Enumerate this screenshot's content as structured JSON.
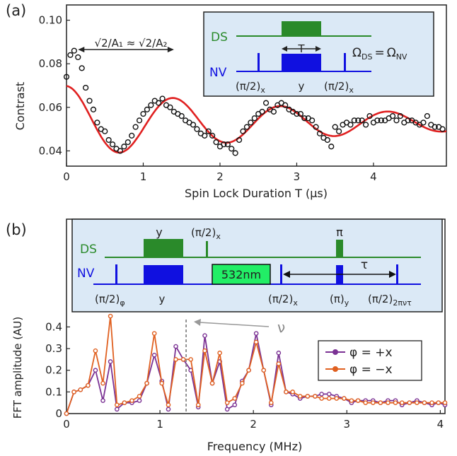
{
  "chart_data": [
    {
      "panel_label": "(a)",
      "type": "scatter",
      "xlabel": "Spin Lock Duration T (μs)",
      "ylabel": "Contrast",
      "xlim": [
        0,
        4.95
      ],
      "ylim": [
        0.033,
        0.107
      ],
      "xticks": [
        "0",
        "1",
        "2",
        "3",
        "4"
      ],
      "xtick_values": [
        0,
        1,
        2,
        3,
        4
      ],
      "yticks": [
        "0.04",
        "0.06",
        "0.08",
        "0.10"
      ],
      "ytick_values": [
        0.04,
        0.06,
        0.08,
        0.1
      ],
      "fit_color": "#e02020",
      "point_color": "#111111",
      "annotation": "√2/A₁ ≈ √2/A₂",
      "annotation_x": [
        0.15,
        1.4
      ],
      "annotation_y": 0.0865,
      "fit_params": {
        "offset": 0.053,
        "amplitude": 0.0168,
        "period": 1.4,
        "decay": 3.5
      },
      "series": [
        {
          "kind": "data",
          "x": [
            0.0,
            0.05,
            0.1,
            0.15,
            0.2,
            0.25,
            0.3,
            0.35,
            0.4,
            0.45,
            0.5,
            0.55,
            0.6,
            0.65,
            0.7,
            0.75,
            0.8,
            0.85,
            0.9,
            0.95,
            1.0,
            1.05,
            1.1,
            1.15,
            1.2,
            1.25,
            1.3,
            1.35,
            1.4,
            1.45,
            1.5,
            1.55,
            1.6,
            1.65,
            1.7,
            1.75,
            1.8,
            1.85,
            1.9,
            1.95,
            2.0,
            2.05,
            2.1,
            2.15,
            2.2,
            2.25,
            2.3,
            2.35,
            2.4,
            2.45,
            2.5,
            2.55,
            2.6,
            2.65,
            2.7,
            2.75,
            2.8,
            2.85,
            2.9,
            2.95,
            3.0,
            3.05,
            3.1,
            3.15,
            3.2,
            3.25,
            3.3,
            3.35,
            3.4,
            3.45,
            3.5,
            3.55,
            3.6,
            3.65,
            3.7,
            3.75,
            3.8,
            3.85,
            3.9,
            3.95,
            4.0,
            4.05,
            4.1,
            4.15,
            4.2,
            4.25,
            4.3,
            4.35,
            4.4,
            4.45,
            4.5,
            4.55,
            4.6,
            4.65,
            4.7,
            4.75,
            4.8,
            4.85,
            4.9
          ],
          "y": [
            0.074,
            0.084,
            0.086,
            0.083,
            0.078,
            0.069,
            0.063,
            0.059,
            0.053,
            0.05,
            0.049,
            0.045,
            0.043,
            0.041,
            0.04,
            0.042,
            0.044,
            0.047,
            0.051,
            0.054,
            0.057,
            0.059,
            0.061,
            0.063,
            0.062,
            0.064,
            0.061,
            0.06,
            0.058,
            0.057,
            0.056,
            0.054,
            0.053,
            0.052,
            0.05,
            0.048,
            0.047,
            0.049,
            0.047,
            0.044,
            0.042,
            0.043,
            0.043,
            0.041,
            0.039,
            0.045,
            0.049,
            0.051,
            0.053,
            0.055,
            0.057,
            0.058,
            0.062,
            0.059,
            0.058,
            0.061,
            0.062,
            0.061,
            0.059,
            0.058,
            0.057,
            0.057,
            0.055,
            0.055,
            0.054,
            0.051,
            0.048,
            0.046,
            0.045,
            0.042,
            0.051,
            0.049,
            0.052,
            0.053,
            0.052,
            0.054,
            0.054,
            0.054,
            0.052,
            0.056,
            0.053,
            0.054,
            0.054,
            0.054,
            0.055,
            0.056,
            0.054,
            0.056,
            0.053,
            0.054,
            0.054,
            0.053,
            0.052,
            0.053,
            0.056,
            0.052,
            0.051,
            0.051,
            0.05
          ]
        }
      ],
      "inset": {
        "ds_label": "DS",
        "nv_label": "NV",
        "t_label": "T",
        "omega_label": "Ω",
        "omega_ds_sub": "DS",
        "omega_nv_sub": "NV",
        "equals": "=",
        "pulse_labels": [
          "(π/2)",
          "y",
          "(π/2)"
        ],
        "pulse_subs": [
          "x",
          "",
          "x"
        ],
        "ds_color": "#2a8a2a",
        "nv_color": "#1010e0",
        "bg_color": "#dbe9f6"
      }
    },
    {
      "panel_label": "(b)",
      "type": "line",
      "xlabel": "Frequency (MHz)",
      "ylabel": "FFT amplitude (AU)",
      "xlim": [
        0,
        4.05
      ],
      "ylim": [
        0,
        0.47
      ],
      "xticks": [
        "0",
        "1",
        "2",
        "3",
        "4"
      ],
      "xtick_values": [
        0,
        1,
        2,
        3,
        4
      ],
      "yticks": [
        "0",
        "0.1",
        "0.2",
        "0.3",
        "0.4"
      ],
      "ytick_values": [
        0,
        0.1,
        0.2,
        0.3,
        0.4
      ],
      "marker_label": "ν",
      "marker_x": 1.28,
      "x": [
        0.0,
        0.08,
        0.15,
        0.23,
        0.31,
        0.39,
        0.47,
        0.54,
        0.62,
        0.7,
        0.78,
        0.86,
        0.94,
        1.02,
        1.09,
        1.17,
        1.25,
        1.33,
        1.41,
        1.48,
        1.56,
        1.64,
        1.72,
        1.8,
        1.88,
        1.95,
        2.03,
        2.11,
        2.19,
        2.27,
        2.35,
        2.42,
        2.5,
        2.58,
        2.66,
        2.73,
        2.81,
        2.89,
        2.97,
        3.05,
        3.12,
        3.2,
        3.28,
        3.36,
        3.44,
        3.52,
        3.59,
        3.67,
        3.75,
        3.83,
        3.91,
        3.98,
        4.05
      ],
      "series": [
        {
          "name": "φ = +x",
          "color": "#7b3294",
          "values": [
            0.0,
            0.1,
            0.11,
            0.13,
            0.2,
            0.06,
            0.24,
            0.02,
            0.05,
            0.05,
            0.06,
            0.14,
            0.27,
            0.15,
            0.02,
            0.31,
            0.25,
            0.2,
            0.03,
            0.36,
            0.14,
            0.24,
            0.02,
            0.04,
            0.15,
            0.2,
            0.37,
            0.2,
            0.04,
            0.28,
            0.1,
            0.09,
            0.07,
            0.08,
            0.08,
            0.09,
            0.09,
            0.08,
            0.07,
            0.05,
            0.06,
            0.06,
            0.06,
            0.05,
            0.06,
            0.06,
            0.04,
            0.05,
            0.06,
            0.05,
            0.04,
            0.05,
            0.04
          ]
        },
        {
          "name": "φ = −x",
          "color": "#e06020",
          "values": [
            0.0,
            0.1,
            0.11,
            0.13,
            0.29,
            0.14,
            0.45,
            0.04,
            0.05,
            0.06,
            0.08,
            0.14,
            0.37,
            0.14,
            0.04,
            0.25,
            0.25,
            0.25,
            0.04,
            0.29,
            0.14,
            0.28,
            0.05,
            0.07,
            0.14,
            0.2,
            0.33,
            0.2,
            0.05,
            0.23,
            0.1,
            0.1,
            0.08,
            0.08,
            0.08,
            0.07,
            0.07,
            0.07,
            0.07,
            0.06,
            0.06,
            0.05,
            0.05,
            0.05,
            0.05,
            0.05,
            0.05,
            0.05,
            0.05,
            0.05,
            0.05,
            0.05,
            0.05
          ]
        }
      ],
      "inset": {
        "ds_label": "DS",
        "nv_label": "NV",
        "laser_label": "532nm",
        "tau_label": "τ",
        "pi_label": "π",
        "y_label": "y",
        "pihalf_x_label": "(π/2)",
        "pihalf_x_sub": "x",
        "nv_labels": [
          "(π/2)",
          "y",
          "(π/2)",
          "(π)",
          "(π/2)"
        ],
        "nv_subs": [
          "φ",
          "",
          "x",
          "y",
          "2πντ"
        ],
        "ds_color": "#2a8a2a",
        "nv_color": "#1010e0",
        "laser_color": "#22ee66",
        "bg_color": "#dbe9f6"
      }
    }
  ]
}
